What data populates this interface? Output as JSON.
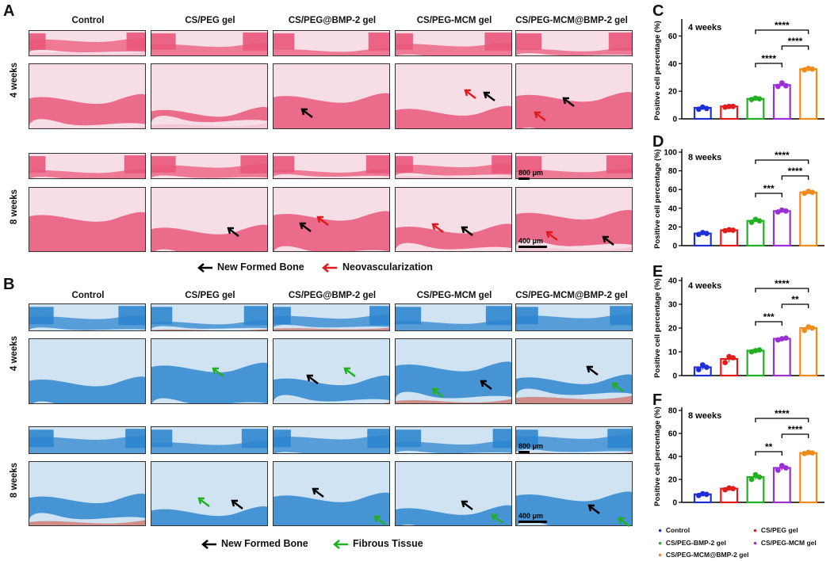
{
  "panels": {
    "A": "A",
    "B": "B",
    "C": "C",
    "D": "D",
    "E": "E",
    "F": "F"
  },
  "columns": [
    "Control",
    "CS/PEG gel",
    "CS/PEG@BMP-2 gel",
    "CS/PEG-MCM gel",
    "CS/PEG-MCM@BMP-2 gel"
  ],
  "rows": [
    "4 weeks",
    "8 weeks"
  ],
  "scale": {
    "large": "800 μm",
    "small": "400 μm"
  },
  "legendA": {
    "black": "New Formed Bone",
    "red": "Neovascularization"
  },
  "legendB": {
    "black": "New Formed Bone",
    "green": "Fibrous Tissue"
  },
  "colors": {
    "he_bg": "#f7dde6",
    "he_tissue": "#e9577a",
    "he_light": "#f2b5c8",
    "mt_blue": "#2f86cf",
    "mt_light": "#cfe3f3",
    "mt_red": "#d2452f",
    "control": "#1f2fd6",
    "cspeg": "#e01b1b",
    "bmp": "#22b022",
    "mcm": "#9b2fd6",
    "mcmbmp": "#f08c1c"
  },
  "chart_legend": [
    "Control",
    "CS/PEG gel",
    "CS/PEG-BMP-2 gel",
    "CS/PEG-MCM gel",
    "CS/PEG-MCM@BMP-2 gel"
  ],
  "chart_data": [
    {
      "type": "bar",
      "panel": "C",
      "title": "4 weeks",
      "ylabel": "Positive cell percentage (%)",
      "ylim": [
        0,
        70
      ],
      "yticks": [
        0,
        20,
        40,
        60
      ],
      "values": [
        8,
        9,
        14.5,
        24.5,
        36
      ],
      "points": [
        [
          7,
          8.5,
          7.5
        ],
        [
          8.5,
          9,
          9
        ],
        [
          14,
          15,
          14.5
        ],
        [
          23.5,
          26,
          24
        ],
        [
          35.5,
          36.5,
          36
        ]
      ],
      "significance": [
        {
          "from": 2,
          "to": 4,
          "label": "****"
        },
        {
          "from": 3,
          "to": 4,
          "label": "****"
        },
        {
          "from": 2,
          "to": 3,
          "label": "****"
        }
      ]
    },
    {
      "type": "bar",
      "panel": "D",
      "title": "8 weeks",
      "ylabel": "Positive cell percentage (%)",
      "ylim": [
        0,
        100
      ],
      "yticks": [
        0,
        20,
        40,
        60,
        80,
        100
      ],
      "values": [
        13,
        16.5,
        26.5,
        37,
        57
      ],
      "points": [
        [
          12,
          14,
          13
        ],
        [
          16,
          17,
          16.5
        ],
        [
          25,
          28,
          26.5
        ],
        [
          36,
          38,
          37
        ],
        [
          56,
          58,
          57
        ]
      ],
      "significance": [
        {
          "from": 2,
          "to": 4,
          "label": "****"
        },
        {
          "from": 3,
          "to": 4,
          "label": "****"
        },
        {
          "from": 2,
          "to": 3,
          "label": "***"
        }
      ]
    },
    {
      "type": "bar",
      "panel": "E",
      "title": "4 weeks",
      "ylabel": "Positive cell percentage (%)",
      "ylim": [
        0,
        40
      ],
      "yticks": [
        0,
        10,
        20,
        30,
        40
      ],
      "values": [
        3.5,
        7,
        10.5,
        15.5,
        20
      ],
      "points": [
        [
          2.5,
          4.5,
          3.5
        ],
        [
          5.5,
          8,
          7.5
        ],
        [
          10,
          10.5,
          10.8
        ],
        [
          15,
          15.5,
          15.8
        ],
        [
          19,
          20.5,
          20
        ]
      ],
      "significance": [
        {
          "from": 2,
          "to": 4,
          "label": "****"
        },
        {
          "from": 3,
          "to": 4,
          "label": "**"
        },
        {
          "from": 2,
          "to": 3,
          "label": "***"
        }
      ]
    },
    {
      "type": "bar",
      "panel": "F",
      "title": "8 weeks",
      "ylabel": "Positive cell percentage (%)",
      "ylim": [
        0,
        80
      ],
      "yticks": [
        0,
        20,
        40,
        60,
        80
      ],
      "values": [
        7,
        12,
        22,
        30,
        43
      ],
      "points": [
        [
          6,
          7.5,
          7
        ],
        [
          11,
          12.5,
          12
        ],
        [
          20,
          24,
          22
        ],
        [
          28,
          32,
          30
        ],
        [
          42.5,
          43.5,
          43
        ]
      ],
      "significance": [
        {
          "from": 2,
          "to": 4,
          "label": "****"
        },
        {
          "from": 3,
          "to": 4,
          "label": "****"
        },
        {
          "from": 2,
          "to": 3,
          "label": "**"
        }
      ]
    }
  ]
}
